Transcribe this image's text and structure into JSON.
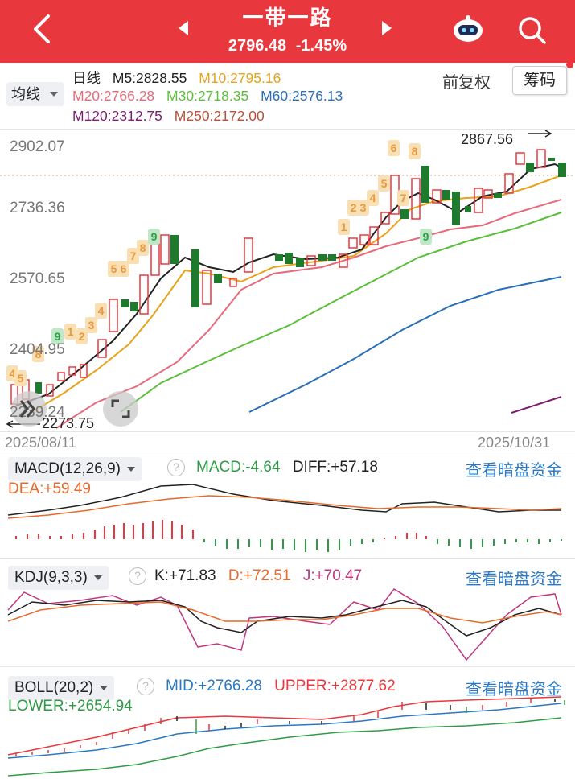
{
  "header": {
    "title": "一带一路",
    "price": "2796.48",
    "change": "-1.45%",
    "bg_color": "#e8383d",
    "icons": [
      "back-icon",
      "prev-arrow-icon",
      "next-arrow-icon",
      "robot-assistant-icon",
      "search-icon"
    ]
  },
  "ma": {
    "selector": "均线",
    "period": "日线",
    "m5": "M5:2828.55",
    "m10": "M10:2795.16",
    "m20": "M20:2766.28",
    "m30": "M30:2718.35",
    "m60": "M60:2576.13",
    "m120": "M120:2312.75",
    "m250": "M250:2172.00",
    "colors": {
      "m5": "#222222",
      "m10": "#e8a21b",
      "m20": "#e86a7a",
      "m30": "#5bbf3b",
      "m60": "#2a6fb8",
      "m120": "#7a1f6e",
      "m250": "#b5513a"
    }
  },
  "buttons": {
    "adjust": "前复权",
    "chips": "筹码"
  },
  "main_chart": {
    "y_labels": [
      "2902.07",
      "2736.36",
      "2570.65",
      "2404.95",
      "2239.24"
    ],
    "high_label": "2867.56",
    "low_label": "2273.75",
    "date_start": "2025/08/11",
    "date_end": "2025/10/31",
    "td_counts": [
      "4",
      "5",
      "6",
      "7",
      "8",
      "9",
      "1",
      "2",
      "3",
      "4",
      "5",
      "6",
      "7",
      "8",
      "9",
      "1",
      "2",
      "3",
      "4",
      "5",
      "6",
      "7",
      "8",
      "9"
    ]
  },
  "macd": {
    "name": "MACD(12,26,9)",
    "macd": "MACD:-4.64",
    "diff": "DIFF:+57.18",
    "dea": "DEA:+59.49",
    "link": "查看暗盘资金"
  },
  "kdj": {
    "name": "KDJ(9,3,3)",
    "k": "K:+71.83",
    "d": "D:+72.51",
    "j": "J:+70.47",
    "link": "查看暗盘资金"
  },
  "boll": {
    "name": "BOLL(20,2)",
    "mid": "MID:+2766.28",
    "upper": "UPPER:+2877.62",
    "lower": "LOWER:+2654.94",
    "link": "查看暗盘资金"
  }
}
